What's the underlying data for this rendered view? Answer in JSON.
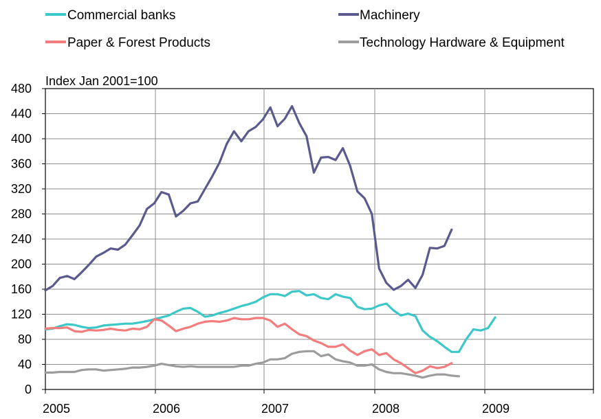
{
  "chart_data": {
    "type": "line",
    "unit_label": "Index Jan 2001=100",
    "y_axis": {
      "min": 0,
      "max": 480,
      "ticks": [
        0,
        40,
        80,
        120,
        160,
        200,
        240,
        280,
        320,
        360,
        400,
        440,
        480
      ]
    },
    "x_axis": {
      "tick_labels": [
        "2005",
        "2006",
        "2007",
        "2008",
        "2009"
      ]
    },
    "grid": true,
    "legend_placement": "top",
    "series": [
      {
        "name": "Commercial banks",
        "color": "#3CC8C8",
        "values": [
          96,
          97,
          101,
          104,
          103,
          100,
          98,
          99,
          102,
          103,
          104,
          105,
          105,
          107,
          109,
          112,
          115,
          118,
          124,
          129,
          130,
          124,
          116,
          118,
          122,
          125,
          129,
          133,
          136,
          140,
          147,
          152,
          152,
          149,
          156,
          157,
          150,
          152,
          146,
          144,
          152,
          148,
          146,
          132,
          128,
          129,
          134,
          137,
          126,
          118,
          121,
          117,
          94,
          84,
          77,
          68,
          60,
          60,
          80,
          96,
          94,
          98,
          115
        ]
      },
      {
        "name": "Machinery",
        "color": "#5A5A8F",
        "values": [
          158,
          165,
          178,
          181,
          176,
          187,
          199,
          212,
          218,
          225,
          223,
          231,
          246,
          262,
          288,
          297,
          315,
          311,
          276,
          285,
          297,
          300,
          320,
          340,
          362,
          392,
          412,
          396,
          412,
          419,
          431,
          450,
          420,
          432,
          452,
          425,
          404,
          346,
          370,
          371,
          366,
          385,
          357,
          316,
          305,
          280,
          193,
          170,
          159,
          165,
          175,
          162,
          183,
          226,
          225,
          229,
          255
        ]
      },
      {
        "name": "Paper & Forest Products",
        "color": "#F47C7C",
        "values": [
          97,
          98,
          98,
          99,
          93,
          92,
          95,
          94,
          95,
          97,
          95,
          94,
          97,
          96,
          100,
          112,
          110,
          102,
          93,
          97,
          100,
          105,
          108,
          109,
          108,
          110,
          114,
          112,
          112,
          114,
          114,
          110,
          100,
          105,
          96,
          88,
          85,
          78,
          74,
          68,
          68,
          72,
          62,
          55,
          61,
          64,
          55,
          58,
          48,
          42,
          34,
          26,
          30,
          37,
          34,
          36,
          42
        ]
      },
      {
        "name": "Technology Hardware & Equipment",
        "color": "#9C9C9C",
        "values": [
          27,
          27,
          28,
          28,
          28,
          31,
          32,
          32,
          30,
          31,
          32,
          33,
          35,
          35,
          36,
          38,
          41,
          39,
          37,
          36,
          37,
          36,
          36,
          36,
          36,
          36,
          36,
          38,
          38,
          41,
          43,
          48,
          48,
          50,
          57,
          60,
          61,
          61,
          53,
          56,
          48,
          45,
          43,
          38,
          38,
          40,
          32,
          28,
          26,
          26,
          24,
          22,
          19,
          22,
          24,
          24,
          22,
          21
        ]
      }
    ]
  }
}
